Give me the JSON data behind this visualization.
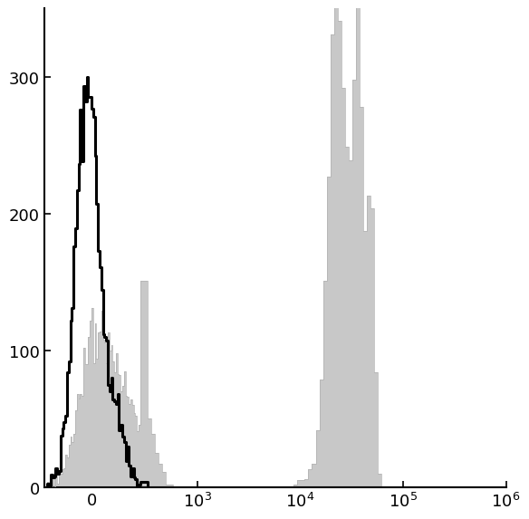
{
  "ylim": [
    0,
    350
  ],
  "yticks": [
    0,
    100,
    200,
    300
  ],
  "background_color": "#ffffff",
  "gray_fill_color": "#c8c8c8",
  "gray_edge_color": "#b0b0b0",
  "black_line_color": "#000000",
  "linewidth_black": 2.2,
  "figsize": [
    5.87,
    5.76
  ],
  "dpi": 100,
  "linthresh": 300,
  "linscale": 0.45
}
